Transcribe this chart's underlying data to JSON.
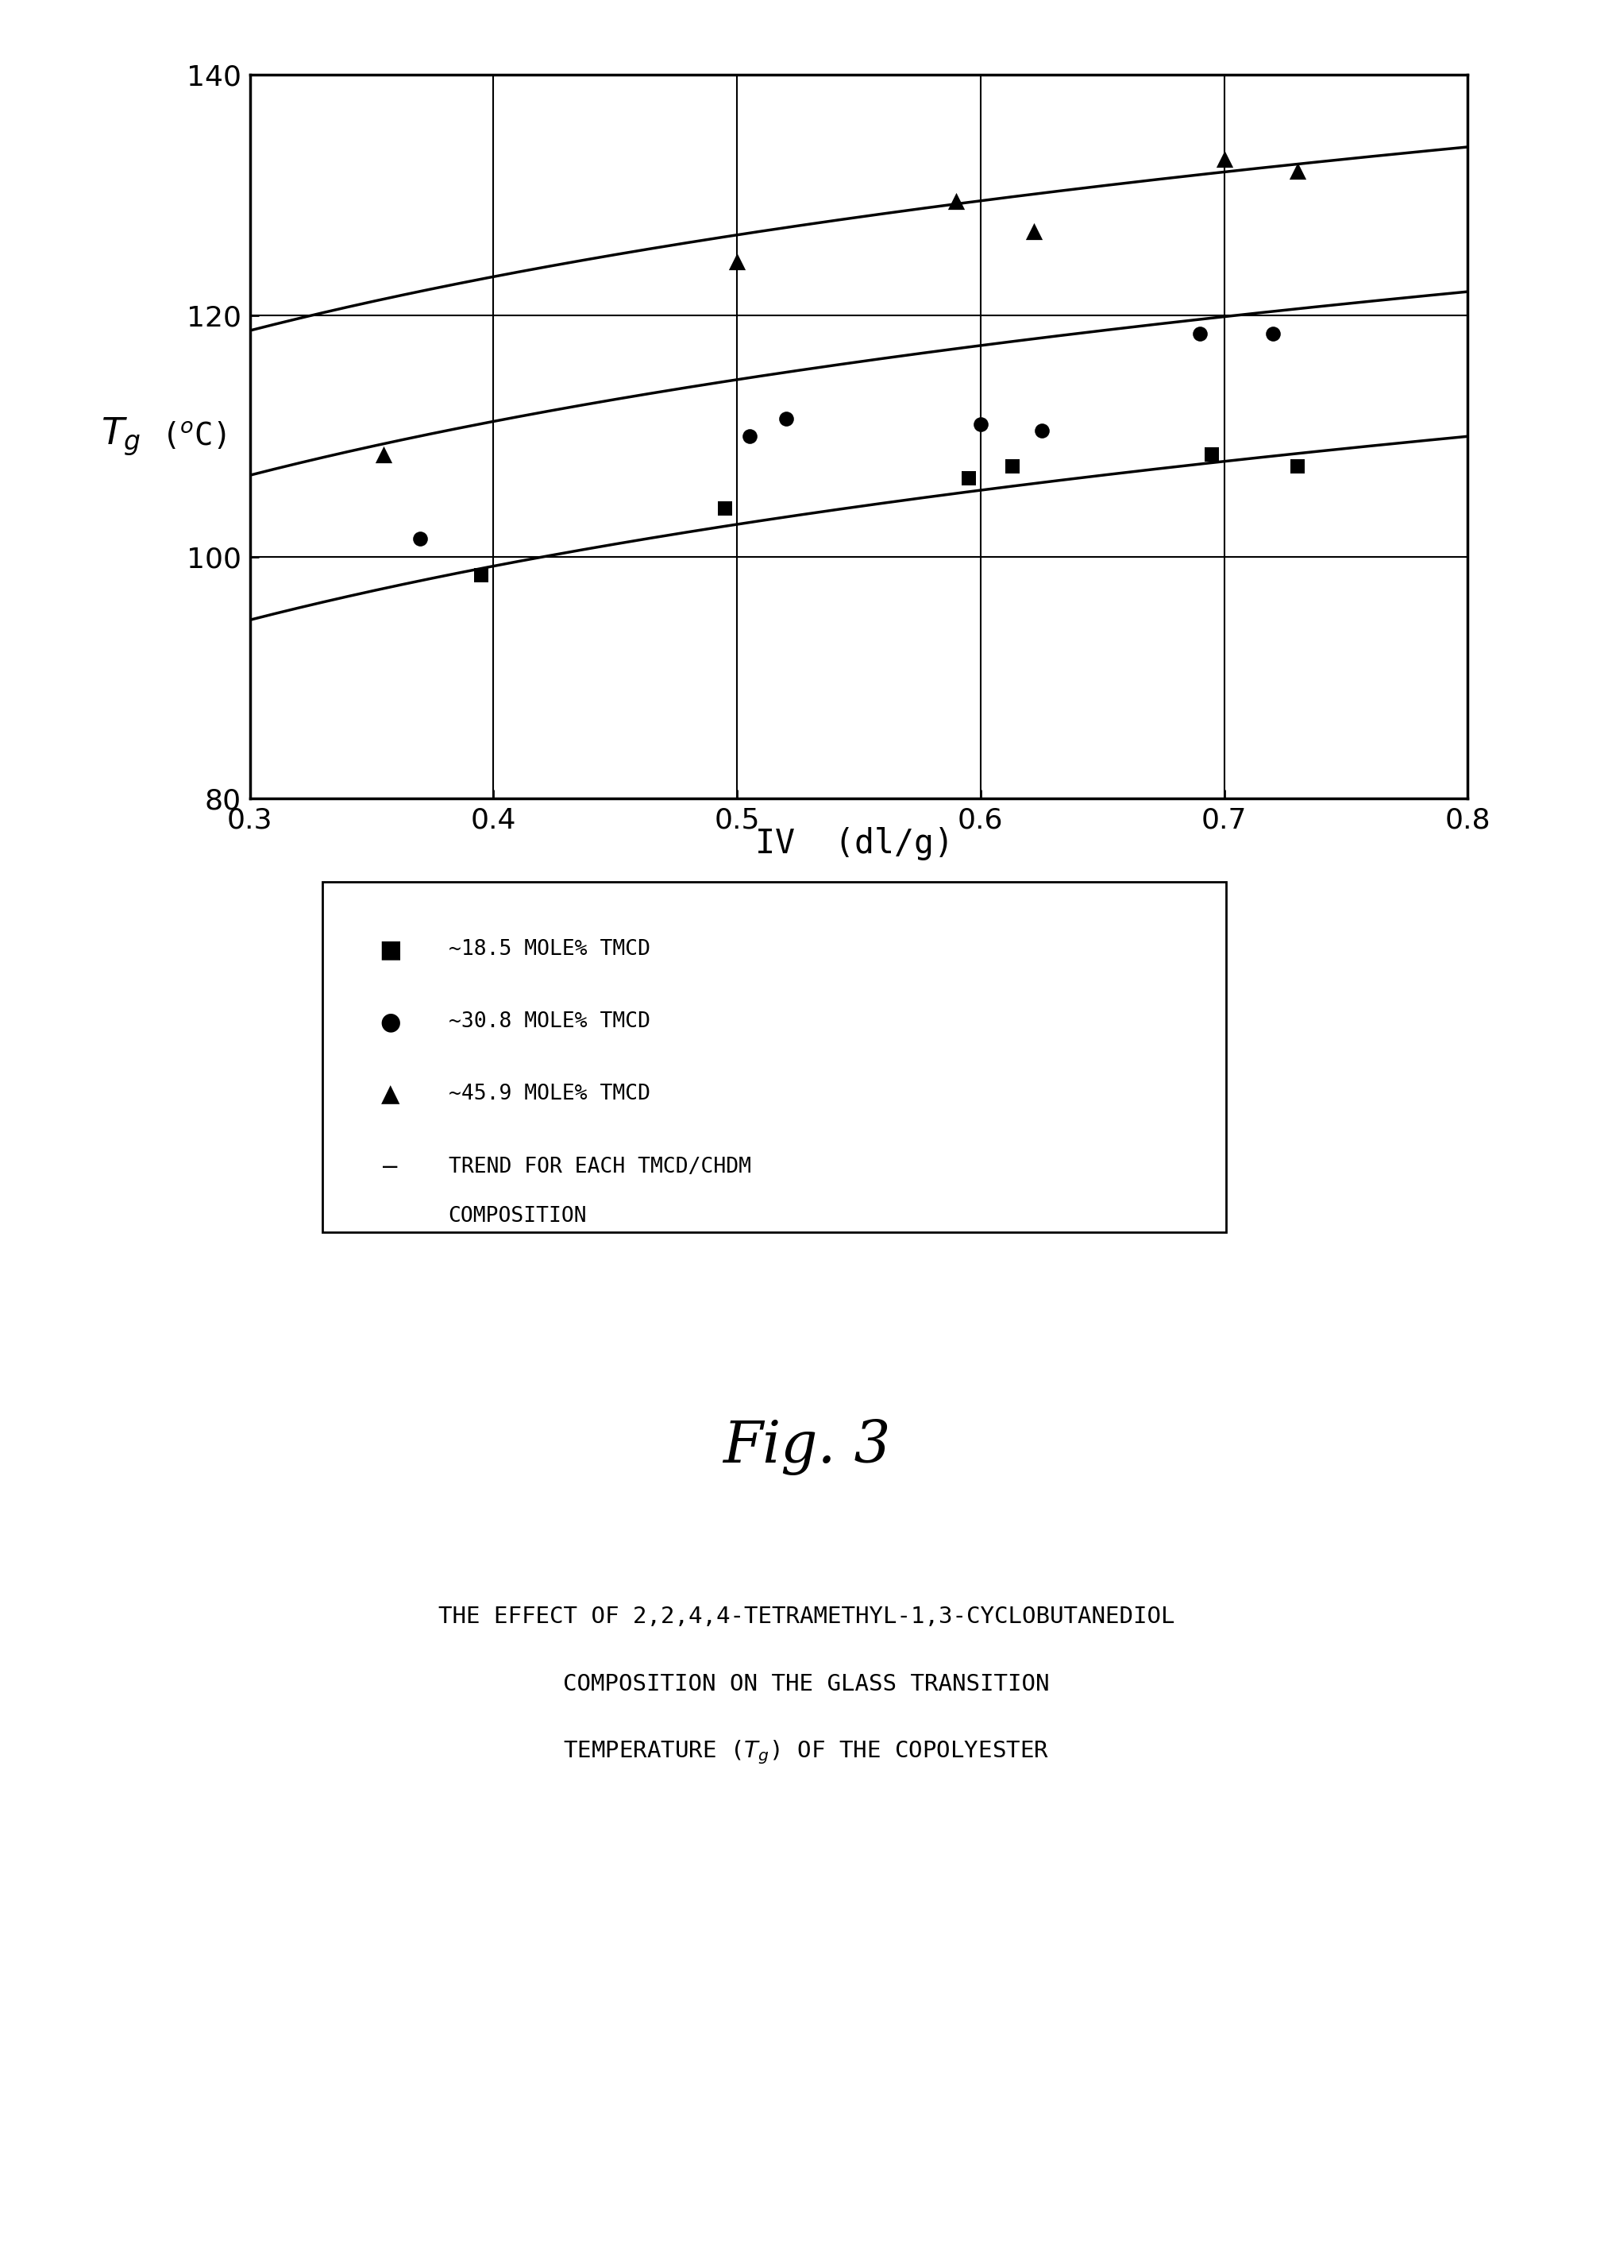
{
  "xlim": [
    0.3,
    0.8
  ],
  "ylim": [
    80,
    140
  ],
  "xticks": [
    0.3,
    0.4,
    0.5,
    0.6,
    0.7,
    0.8
  ],
  "yticks": [
    80,
    100,
    120,
    140
  ],
  "xlabel": "IV  (dl/g)",
  "series_18p5_x": [
    0.395,
    0.495,
    0.595,
    0.613,
    0.695,
    0.73
  ],
  "series_18p5_y": [
    98.5,
    104.0,
    106.5,
    107.5,
    108.5,
    107.5
  ],
  "series_30p8_x": [
    0.37,
    0.505,
    0.52,
    0.6,
    0.625,
    0.69,
    0.72
  ],
  "series_30p8_y": [
    101.5,
    110.0,
    111.5,
    111.0,
    110.5,
    118.5,
    118.5
  ],
  "series_45p9_x": [
    0.355,
    0.5,
    0.59,
    0.622,
    0.7,
    0.73
  ],
  "series_45p9_y": [
    108.5,
    124.5,
    129.5,
    127.0,
    133.0,
    132.0
  ],
  "curve1_A": 145.0,
  "curve1_B": -15.0,
  "curve1_C": 2.5,
  "curve2_A": 157.0,
  "curve2_B": -15.0,
  "curve2_C": 2.5,
  "curve3_A": 169.0,
  "curve3_B": -15.0,
  "curve3_C": 2.5,
  "legend_18p5": "~18.5 MOLE% TMCD",
  "legend_30p8": "~30.8 MOLE% TMCD",
  "legend_45p9": "~45.9 MOLE% TMCD",
  "legend_trend1": "TREND FOR EACH TMCD/CHDM",
  "legend_trend2": "COMPOSITION",
  "fig_label": "Fig. 3",
  "caption1": "THE EFFECT OF 2,2,4,4-TETRAMETHYL-1,3-CYCLOBUTANEDIOL",
  "caption2": "COMPOSITION ON THE GLASS TRANSITION",
  "caption3": "TEMPERATURE ($T_g$) OF THE COPOLYESTER",
  "bg_color": "#ffffff"
}
